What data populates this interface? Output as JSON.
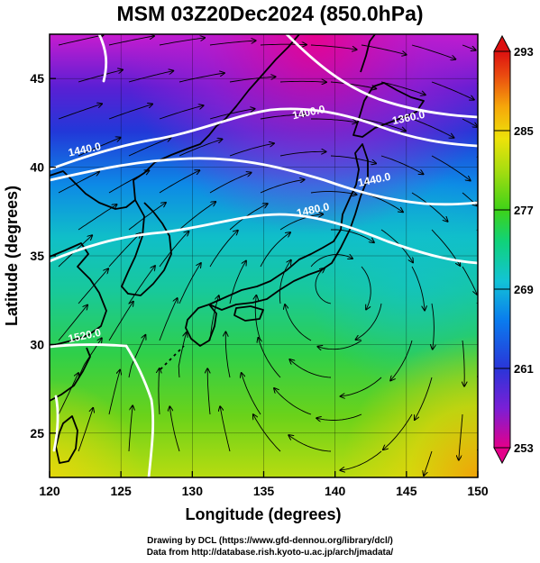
{
  "figure": {
    "title": "MSM 03Z20Dec2024 (850.0hPa)",
    "xlabel": "Longitude (degrees)",
    "ylabel": "Latitude  (degrees)",
    "credit_line1": "Drawing by DCL (https://www.gfd-dennou.org/library/dcl/)",
    "credit_line2": "Data from http://database.rish.kyoto-u.ac.jp/arch/jmadata/"
  },
  "chart_data": {
    "type": "heatmap",
    "x_range": [
      120,
      150
    ],
    "y_range": [
      22.5,
      47.5
    ],
    "x_ticks": [
      "120",
      "125",
      "130",
      "135",
      "140",
      "145",
      "150"
    ],
    "y_ticks": [
      "25",
      "30",
      "35",
      "40",
      "45"
    ],
    "colorbar": {
      "range": [
        253,
        293
      ],
      "ticks": [
        "293",
        "285",
        "277",
        "269",
        "261",
        "253"
      ],
      "colors": [
        "#e4008a",
        "#7a1fd6",
        "#2a35d8",
        "#0a7bee",
        "#12c3d6",
        "#10d27a",
        "#3ed218",
        "#a7dd10",
        "#ede20a",
        "#f6a70a",
        "#ea4a10",
        "#dc1010"
      ]
    },
    "contour_labels": [
      {
        "text": "1400.0",
        "lon": 138.2,
        "lat": 42.9
      },
      {
        "text": "1360.0",
        "lon": 145.2,
        "lat": 42.6
      },
      {
        "text": "1440.0",
        "lon": 122.5,
        "lat": 40.8
      },
      {
        "text": "1440.0",
        "lon": 142.8,
        "lat": 39.1
      },
      {
        "text": "1480.0",
        "lon": 138.5,
        "lat": 37.4
      },
      {
        "text": "1520.0",
        "lon": 122.5,
        "lat": 30.3
      }
    ]
  },
  "colors": {
    "land_outline": "#000000",
    "contour": "#ffffff",
    "streamline": "#000000"
  }
}
